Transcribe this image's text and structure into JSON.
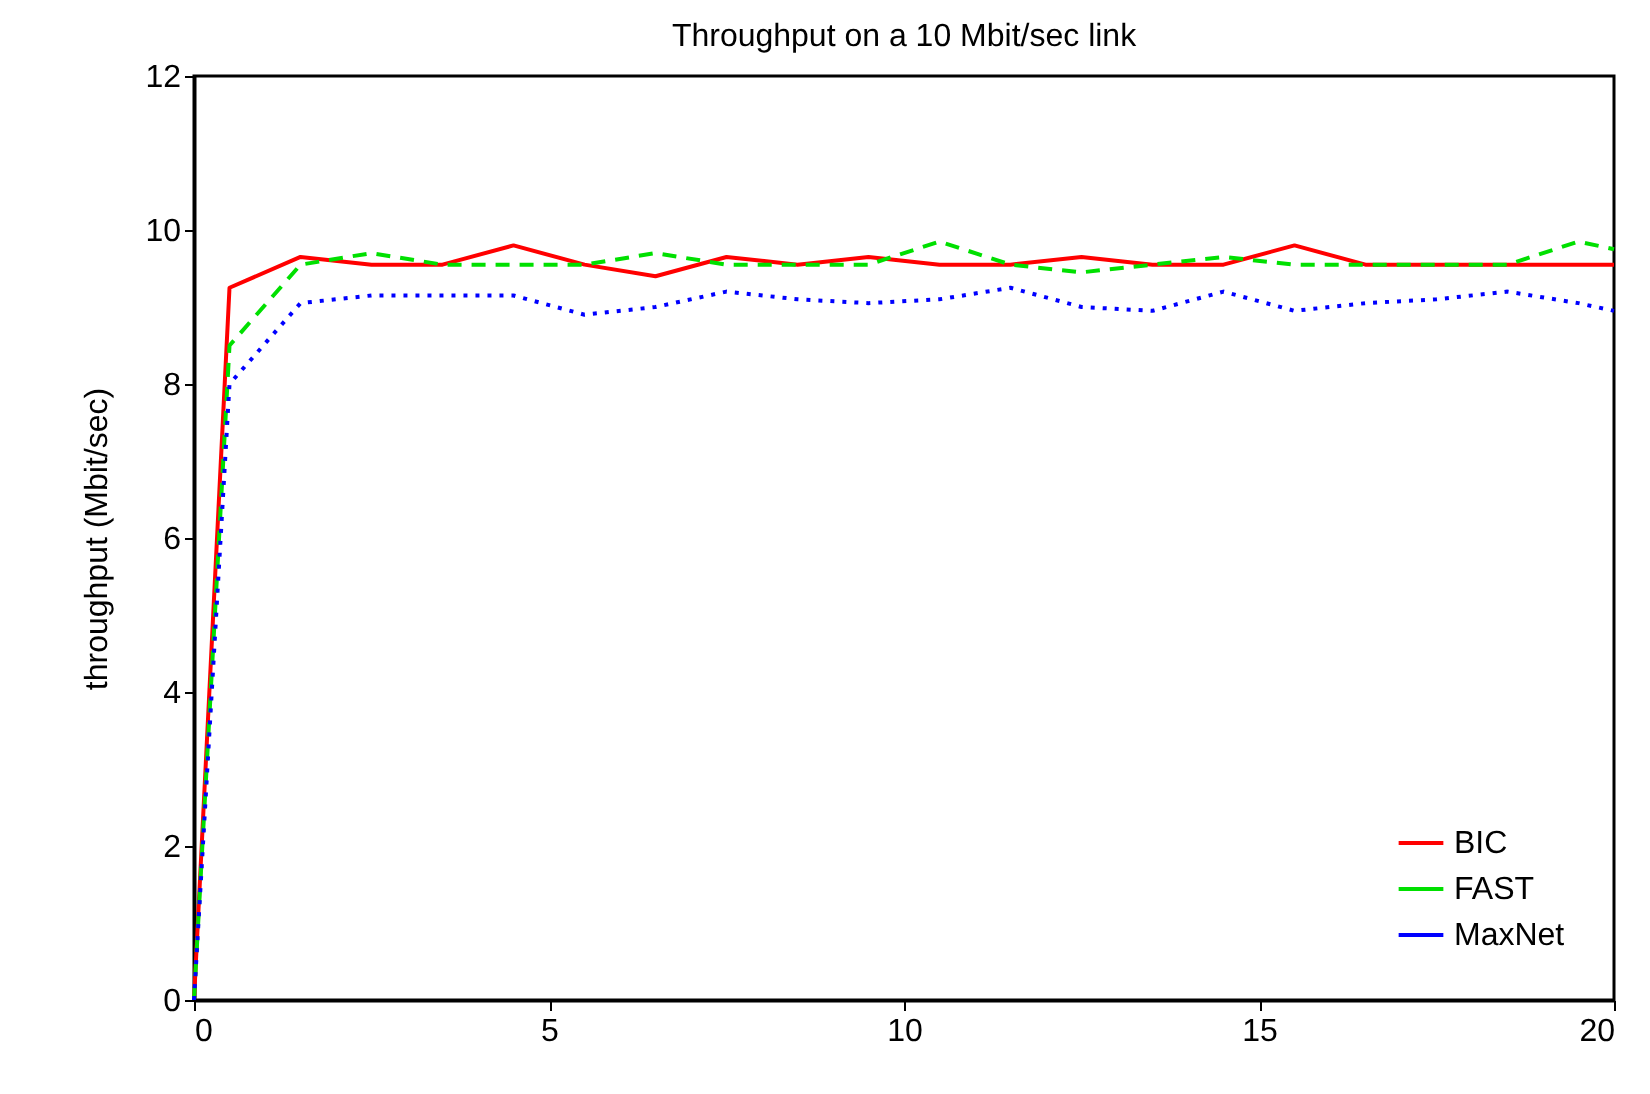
{
  "chart_data": {
    "type": "line",
    "title": "Throughput on a 10 Mbit/sec link",
    "ylabel": "throughput (Mbit/sec)",
    "x": [
      0,
      0.5,
      1.5,
      2.5,
      3.5,
      4.5,
      5.5,
      6.5,
      7.5,
      8.5,
      9.5,
      10.5,
      11.5,
      12.5,
      13.5,
      14.5,
      15.5,
      16.5,
      17.5,
      18.5,
      19.5,
      20
    ],
    "series": [
      {
        "name": "BIC",
        "color": "#ff0000",
        "line_style": "solid",
        "values": [
          0,
          9.25,
          9.65,
          9.55,
          9.55,
          9.8,
          9.55,
          9.4,
          9.65,
          9.55,
          9.65,
          9.55,
          9.55,
          9.65,
          9.55,
          9.55,
          9.8,
          9.55,
          9.55,
          9.55,
          9.55,
          9.55
        ]
      },
      {
        "name": "FAST",
        "color": "#00e000",
        "line_style": "dashed",
        "values": [
          0,
          8.5,
          9.55,
          9.7,
          9.55,
          9.55,
          9.55,
          9.7,
          9.55,
          9.55,
          9.55,
          9.85,
          9.55,
          9.45,
          9.55,
          9.65,
          9.55,
          9.55,
          9.55,
          9.55,
          9.85,
          9.75
        ]
      },
      {
        "name": "MaxNet",
        "color": "#0000ff",
        "line_style": "dotted",
        "values": [
          0,
          8.0,
          9.05,
          9.15,
          9.15,
          9.15,
          8.9,
          9.0,
          9.2,
          9.1,
          9.05,
          9.1,
          9.25,
          9.0,
          8.95,
          9.2,
          8.95,
          9.05,
          9.1,
          9.2,
          9.05,
          8.95
        ]
      }
    ],
    "xlim": [
      0,
      20
    ],
    "xticks": [
      0,
      5,
      10,
      15,
      20
    ],
    "ylim": [
      0,
      12
    ],
    "yticks": [
      0,
      2,
      4,
      6,
      8,
      10,
      12
    ],
    "grid": false,
    "legend": "bottom right",
    "marker": "none"
  }
}
